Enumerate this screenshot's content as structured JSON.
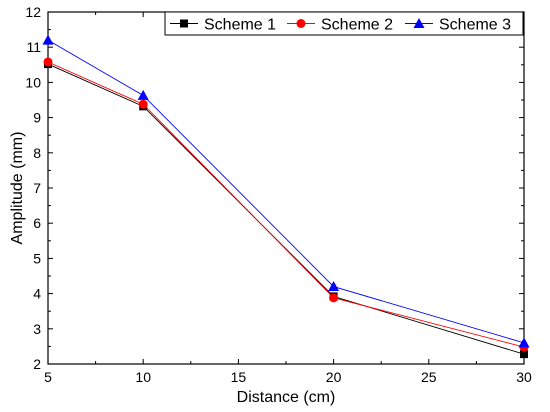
{
  "chart_data": {
    "type": "line",
    "xlabel": "Distance (cm)",
    "ylabel": "Amplitude (mm)",
    "xlim": [
      5,
      30
    ],
    "ylim": [
      2,
      12
    ],
    "xticks": [
      5,
      10,
      15,
      20,
      25,
      30
    ],
    "yticks": [
      2,
      3,
      4,
      5,
      6,
      7,
      8,
      9,
      10,
      11,
      12
    ],
    "grid": false,
    "legend_position": "top-right",
    "x": [
      5,
      10,
      20,
      30
    ],
    "series": [
      {
        "name": "Scheme 1",
        "marker": "square",
        "color": "#000000",
        "values": [
          10.52,
          9.32,
          3.92,
          2.28
        ]
      },
      {
        "name": "Scheme 2",
        "marker": "circle",
        "color": "#ff0000",
        "values": [
          10.58,
          9.38,
          3.88,
          2.48
        ]
      },
      {
        "name": "Scheme 3",
        "marker": "triangle",
        "color": "#0000ff",
        "values": [
          11.2,
          9.63,
          4.2,
          2.6
        ]
      }
    ]
  }
}
